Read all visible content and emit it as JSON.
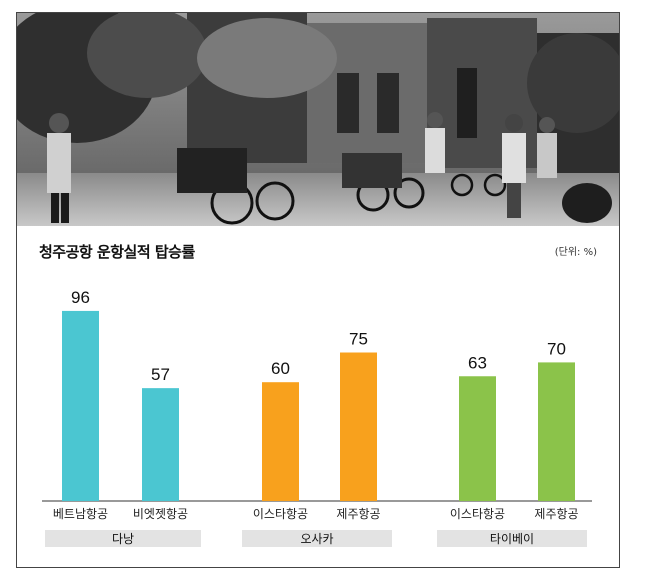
{
  "chart_data": {
    "type": "bar",
    "title": "청주공항 운항실적 탑승률",
    "unit_label": "(단위: %)",
    "ylim": [
      0,
      100
    ],
    "grid": false,
    "groups": [
      {
        "name": "다낭",
        "color": "#4bc6d1",
        "bars": [
          {
            "label": "베트남항공",
            "value": 96
          },
          {
            "label": "비엣젯항공",
            "value": 57
          }
        ]
      },
      {
        "name": "오사카",
        "color": "#f8a11d",
        "bars": [
          {
            "label": "이스타항공",
            "value": 60
          },
          {
            "label": "제주항공",
            "value": 75
          }
        ]
      },
      {
        "name": "타이베이",
        "color": "#8bc34a",
        "bars": [
          {
            "label": "이스타항공",
            "value": 63
          },
          {
            "label": "제주항공",
            "value": 70
          }
        ]
      }
    ]
  },
  "photo": {
    "description_icon": "street-photo"
  }
}
